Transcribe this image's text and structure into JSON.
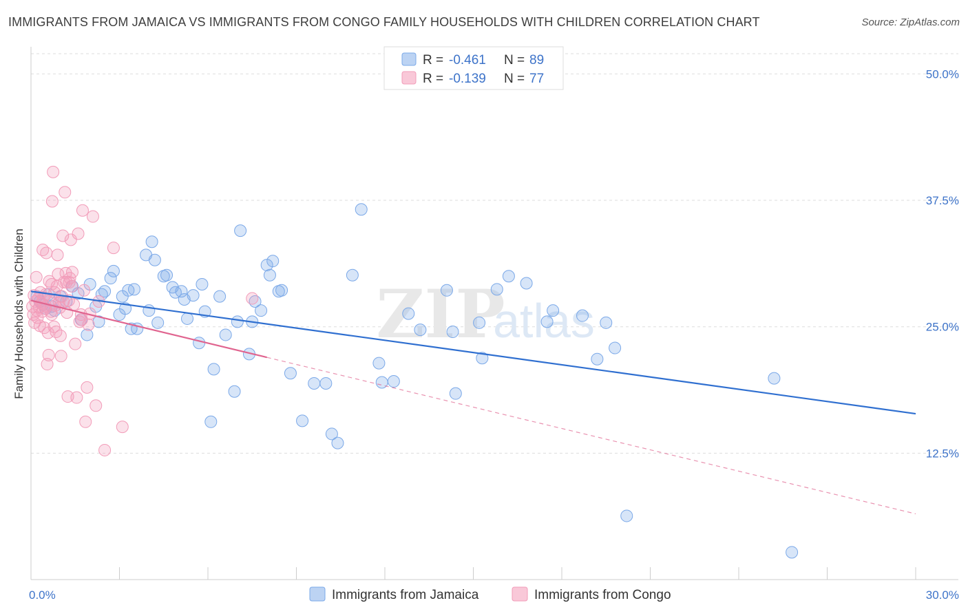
{
  "header": {
    "title": "IMMIGRANTS FROM JAMAICA VS IMMIGRANTS FROM CONGO FAMILY HOUSEHOLDS WITH CHILDREN CORRELATION CHART",
    "source": "Source: ZipAtlas.com"
  },
  "watermark": {
    "zip": "ZIP",
    "atlas": "atlas"
  },
  "legend": {
    "r_label": "R =",
    "n_label": "N =",
    "entries": [
      {
        "r": "-0.461",
        "n": "89",
        "color": "#7aa8e8"
      },
      {
        "r": "-0.139",
        "n": "77",
        "color": "#f29bb8"
      }
    ]
  },
  "bottom_legend": [
    "Immigrants from Jamaica",
    "Immigrants from Congo"
  ],
  "colors": {
    "jamaica": "#7aa8e8",
    "jamaica_line": "#2f6fd0",
    "congo": "#f29bb8",
    "congo_line": "#e0648f",
    "grid": "#dddddd",
    "tick": "#3d73c9"
  },
  "chart_data": {
    "type": "scatter",
    "ylabel": "Family Households with Children",
    "xlim": [
      0,
      30
    ],
    "ylim": [
      0,
      52
    ],
    "x_ticks": [
      {
        "v": 0,
        "label": "0.0%"
      },
      {
        "v": 30,
        "label": "30.0%"
      }
    ],
    "y_ticks": [
      {
        "v": 12.5,
        "label": "12.5%"
      },
      {
        "v": 25,
        "label": "25.0%"
      },
      {
        "v": 37.5,
        "label": "37.5%"
      },
      {
        "v": 50,
        "label": "50.0%"
      }
    ],
    "grid": true,
    "legend_position": "top-center",
    "series": [
      {
        "name": "Immigrants from Jamaica",
        "trend": {
          "x0": 0,
          "y0": 28.5,
          "x1": 30,
          "y1": 16.4,
          "solid_to": 30
        },
        "points": [
          [
            0.2,
            28.0
          ],
          [
            0.3,
            27.5
          ],
          [
            0.4,
            27.2
          ],
          [
            0.5,
            26.8
          ],
          [
            0.6,
            28.2
          ],
          [
            0.7,
            27.0
          ],
          [
            0.8,
            26.6
          ],
          [
            1.0,
            28.0
          ],
          [
            1.2,
            27.5
          ],
          [
            1.4,
            29.0
          ],
          [
            1.6,
            28.3
          ],
          [
            1.7,
            25.7
          ],
          [
            1.9,
            24.2
          ],
          [
            2.0,
            29.2
          ],
          [
            2.2,
            27.0
          ],
          [
            2.3,
            25.5
          ],
          [
            2.4,
            28.2
          ],
          [
            2.5,
            28.5
          ],
          [
            2.7,
            29.8
          ],
          [
            2.8,
            30.5
          ],
          [
            3.0,
            26.2
          ],
          [
            3.1,
            28.0
          ],
          [
            3.2,
            26.8
          ],
          [
            3.3,
            28.6
          ],
          [
            3.4,
            24.8
          ],
          [
            3.5,
            28.7
          ],
          [
            3.6,
            24.8
          ],
          [
            3.9,
            32.1
          ],
          [
            4.0,
            26.6
          ],
          [
            4.1,
            33.4
          ],
          [
            4.2,
            31.6
          ],
          [
            4.3,
            25.4
          ],
          [
            4.5,
            30.0
          ],
          [
            4.6,
            30.1
          ],
          [
            4.8,
            28.9
          ],
          [
            4.9,
            28.4
          ],
          [
            5.1,
            28.5
          ],
          [
            5.2,
            27.7
          ],
          [
            5.3,
            25.8
          ],
          [
            5.5,
            28.1
          ],
          [
            5.7,
            23.4
          ],
          [
            5.8,
            29.2
          ],
          [
            5.9,
            26.5
          ],
          [
            6.1,
            15.6
          ],
          [
            6.2,
            20.8
          ],
          [
            6.4,
            28.0
          ],
          [
            6.6,
            24.2
          ],
          [
            6.9,
            18.6
          ],
          [
            7.0,
            25.5
          ],
          [
            7.1,
            34.5
          ],
          [
            7.4,
            22.3
          ],
          [
            7.5,
            25.5
          ],
          [
            7.6,
            27.5
          ],
          [
            7.8,
            26.6
          ],
          [
            8.0,
            31.1
          ],
          [
            8.1,
            30.1
          ],
          [
            8.2,
            31.5
          ],
          [
            8.4,
            28.5
          ],
          [
            8.5,
            28.6
          ],
          [
            8.8,
            20.4
          ],
          [
            9.2,
            15.7
          ],
          [
            9.6,
            19.4
          ],
          [
            10.0,
            19.4
          ],
          [
            10.2,
            14.4
          ],
          [
            10.4,
            13.5
          ],
          [
            10.9,
            30.1
          ],
          [
            11.2,
            36.6
          ],
          [
            11.8,
            21.4
          ],
          [
            11.9,
            19.5
          ],
          [
            12.3,
            19.6
          ],
          [
            12.8,
            26.3
          ],
          [
            13.2,
            24.7
          ],
          [
            14.1,
            28.6
          ],
          [
            14.3,
            24.5
          ],
          [
            14.4,
            18.4
          ],
          [
            15.2,
            25.4
          ],
          [
            15.3,
            21.9
          ],
          [
            15.8,
            28.7
          ],
          [
            16.2,
            30.0
          ],
          [
            16.8,
            29.3
          ],
          [
            17.5,
            25.5
          ],
          [
            17.7,
            26.6
          ],
          [
            18.7,
            26.1
          ],
          [
            19.2,
            21.8
          ],
          [
            19.5,
            25.4
          ],
          [
            19.8,
            22.9
          ],
          [
            20.2,
            6.3
          ],
          [
            25.2,
            19.9
          ],
          [
            25.8,
            2.7
          ]
        ]
      },
      {
        "name": "Immigrants from Congo",
        "trend": {
          "x0": 0,
          "y0": 27.6,
          "x1": 30,
          "y1": 6.5,
          "solid_to": 8.0
        },
        "points": [
          [
            0.05,
            27.0
          ],
          [
            0.08,
            26.2
          ],
          [
            0.1,
            28.1
          ],
          [
            0.12,
            25.4
          ],
          [
            0.15,
            27.5
          ],
          [
            0.18,
            29.9
          ],
          [
            0.2,
            26.6
          ],
          [
            0.22,
            25.9
          ],
          [
            0.25,
            27.8
          ],
          [
            0.28,
            26.9
          ],
          [
            0.3,
            25.1
          ],
          [
            0.32,
            28.4
          ],
          [
            0.35,
            27.3
          ],
          [
            0.38,
            26.5
          ],
          [
            0.4,
            32.6
          ],
          [
            0.42,
            27.9
          ],
          [
            0.45,
            24.9
          ],
          [
            0.48,
            26.8
          ],
          [
            0.5,
            28.2
          ],
          [
            0.52,
            32.3
          ],
          [
            0.55,
            21.3
          ],
          [
            0.58,
            24.4
          ],
          [
            0.6,
            22.2
          ],
          [
            0.62,
            29.5
          ],
          [
            0.65,
            27.6
          ],
          [
            0.68,
            26.5
          ],
          [
            0.7,
            26.2
          ],
          [
            0.72,
            37.4
          ],
          [
            0.75,
            40.3
          ],
          [
            0.78,
            25.0
          ],
          [
            0.8,
            28.4
          ],
          [
            0.82,
            27.1
          ],
          [
            0.85,
            24.5
          ],
          [
            0.88,
            29.0
          ],
          [
            0.9,
            32.1
          ],
          [
            0.92,
            30.2
          ],
          [
            0.95,
            27.4
          ],
          [
            0.98,
            26.9
          ],
          [
            1.0,
            24.1
          ],
          [
            1.02,
            22.1
          ],
          [
            1.05,
            28.0
          ],
          [
            1.08,
            34.0
          ],
          [
            1.1,
            27.5
          ],
          [
            1.12,
            29.4
          ],
          [
            1.15,
            38.3
          ],
          [
            1.18,
            30.3
          ],
          [
            1.2,
            29.4
          ],
          [
            1.22,
            26.4
          ],
          [
            1.25,
            18.1
          ],
          [
            1.28,
            27.6
          ],
          [
            1.3,
            29.4
          ],
          [
            1.32,
            29.8
          ],
          [
            1.35,
            33.6
          ],
          [
            1.38,
            29.0
          ],
          [
            1.4,
            30.4
          ],
          [
            1.45,
            27.2
          ],
          [
            1.5,
            23.3
          ],
          [
            1.55,
            18.0
          ],
          [
            1.6,
            34.2
          ],
          [
            1.65,
            25.5
          ],
          [
            1.7,
            26.2
          ],
          [
            1.72,
            25.7
          ],
          [
            1.75,
            36.5
          ],
          [
            1.8,
            28.6
          ],
          [
            1.85,
            15.6
          ],
          [
            1.9,
            19.0
          ],
          [
            1.95,
            25.2
          ],
          [
            2.0,
            26.3
          ],
          [
            2.1,
            35.9
          ],
          [
            2.2,
            17.2
          ],
          [
            2.3,
            27.5
          ],
          [
            2.5,
            12.8
          ],
          [
            2.8,
            32.8
          ],
          [
            3.1,
            15.1
          ],
          [
            7.5,
            27.8
          ],
          [
            0.5,
            27.0
          ],
          [
            0.7,
            29.2
          ]
        ]
      }
    ]
  }
}
